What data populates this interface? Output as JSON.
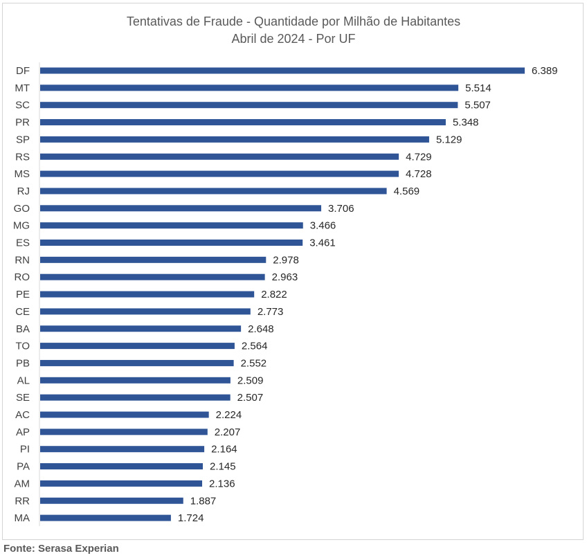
{
  "chart_data": {
    "type": "bar",
    "orientation": "horizontal",
    "title": "Tentativas de Fraude - Quantidade por Milhão de Habitantes",
    "subtitle": "Abril de 2024 - Por UF",
    "categories": [
      "DF",
      "MT",
      "SC",
      "PR",
      "SP",
      "RS",
      "MS",
      "RJ",
      "GO",
      "MG",
      "ES",
      "RN",
      "RO",
      "PE",
      "CE",
      "BA",
      "TO",
      "PB",
      "AL",
      "SE",
      "AC",
      "AP",
      "PI",
      "PA",
      "AM",
      "RR",
      "MA"
    ],
    "values": [
      6389,
      5514,
      5507,
      5348,
      5129,
      4729,
      4728,
      4569,
      3706,
      3466,
      3461,
      2978,
      2963,
      2822,
      2773,
      2648,
      2564,
      2552,
      2509,
      2507,
      2224,
      2207,
      2164,
      2145,
      2136,
      1887,
      1724
    ],
    "value_labels": [
      "6.389",
      "5.514",
      "5.507",
      "5.348",
      "5.129",
      "4.729",
      "4.728",
      "4.569",
      "3.706",
      "3.466",
      "3.461",
      "2.978",
      "2.963",
      "2.822",
      "2.773",
      "2.648",
      "2.564",
      "2.552",
      "2.509",
      "2.507",
      "2.224",
      "2.207",
      "2.164",
      "2.145",
      "2.136",
      "1.887",
      "1.724"
    ],
    "xlim": [
      0,
      6389
    ],
    "bar_color": "#2f5597",
    "grid": false,
    "legend": "none"
  },
  "source": "Fonte: Serasa Experian"
}
